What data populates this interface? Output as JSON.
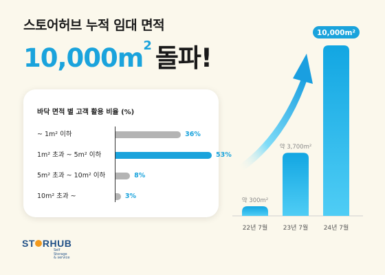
{
  "header": {
    "subtitle": "스토어허브 누적 임대 면적",
    "headline_number": "10,000m",
    "headline_sup": "2",
    "headline_text": "돌파!"
  },
  "logo": {
    "name_part1": "ST",
    "name_part2": "RHUB",
    "sub_line1": "Self",
    "sub_line2": "Storage",
    "sub_line3": "& service"
  },
  "colors": {
    "accent": "#1aa3dc",
    "gray_bar": "#b4b4b4",
    "background": "#fbf8ec"
  },
  "chart_data": [
    {
      "type": "bar",
      "orientation": "horizontal",
      "title": "바닥 면적 별 고객 활용 비율 (%)",
      "categories": [
        "~ 1m² 이하",
        "1m² 초과 ~ 5m² 이하",
        "5m² 초과 ~ 10m² 이하",
        "10m² 초과 ~"
      ],
      "values": [
        36,
        53,
        8,
        3
      ],
      "value_labels": [
        "36%",
        "53%",
        "8%",
        "3%"
      ],
      "highlight_index": 1,
      "xlim": [
        0,
        53
      ]
    },
    {
      "type": "bar",
      "orientation": "vertical",
      "title": "",
      "categories": [
        "22년 7월",
        "23년 7월",
        "24년 7월"
      ],
      "values": [
        300,
        3700,
        10000
      ],
      "value_labels": [
        "약 300m²",
        "약 3,700m²",
        "10,000m²"
      ],
      "ylim": [
        0,
        10000
      ],
      "trend_arrow": true
    }
  ]
}
